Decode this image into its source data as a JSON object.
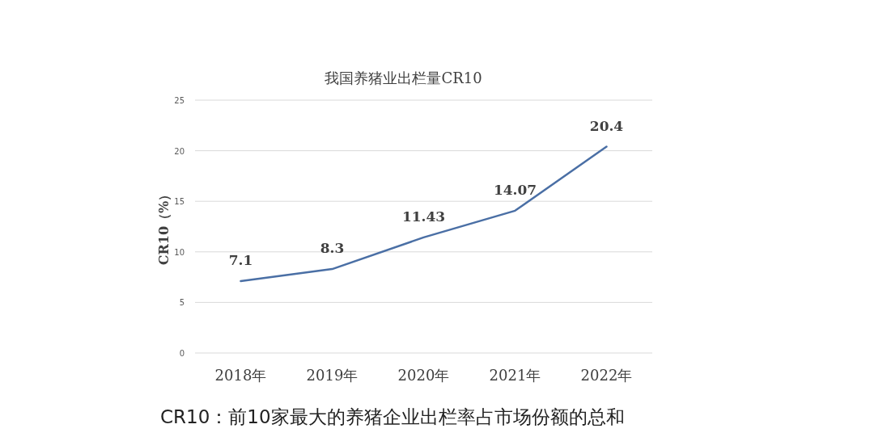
{
  "chart_data": {
    "type": "line",
    "title": "我国养猪业出栏量CR10",
    "ylabel": "CR10（%）",
    "categories": [
      "2018年",
      "2019年",
      "2020年",
      "2021年",
      "2022年"
    ],
    "values": [
      7.1,
      8.3,
      11.43,
      14.07,
      20.4
    ],
    "color": "#4a6fa5",
    "ylim": [
      0,
      25
    ],
    "yticks": [
      0,
      5,
      10,
      15,
      20,
      25
    ],
    "grid": "y",
    "data_labels": true,
    "annotations": [
      "CR10：前10家最大的养猪企业出栏率占市场份额的总和"
    ]
  }
}
